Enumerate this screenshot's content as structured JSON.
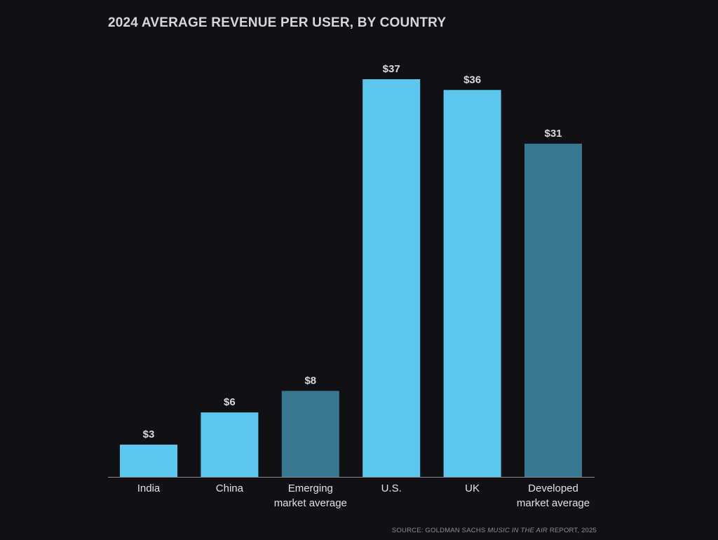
{
  "chart_data": {
    "type": "bar",
    "title": "2024 AVERAGE REVENUE PER USER, BY COUNTRY",
    "xlabel": "",
    "ylabel": "",
    "ylim": [
      0,
      37
    ],
    "grid": false,
    "categories": [
      [
        "India"
      ],
      [
        "China"
      ],
      [
        "Emerging",
        "market average"
      ],
      [
        "U.S."
      ],
      [
        "UK"
      ],
      [
        "Developed",
        "market average"
      ]
    ],
    "values": [
      3,
      6,
      8,
      37,
      36,
      31
    ],
    "value_labels": [
      "$3",
      "$6",
      "$8",
      "$37",
      "$36",
      "$31"
    ],
    "bar_kinds": [
      "country",
      "country",
      "average",
      "country",
      "country",
      "average"
    ]
  },
  "source": {
    "prefix": "SOURCE: GOLDMAN SACHS ",
    "italic": "MUSIC IN THE AIR",
    "suffix": " REPORT, 2025"
  },
  "colors": {
    "background": "#111115",
    "country": "#5bc8ef",
    "average": "#3a7891",
    "axis": "#8a8a90",
    "value_label": "#d9d9de",
    "category_label": "#e2e2e6"
  }
}
